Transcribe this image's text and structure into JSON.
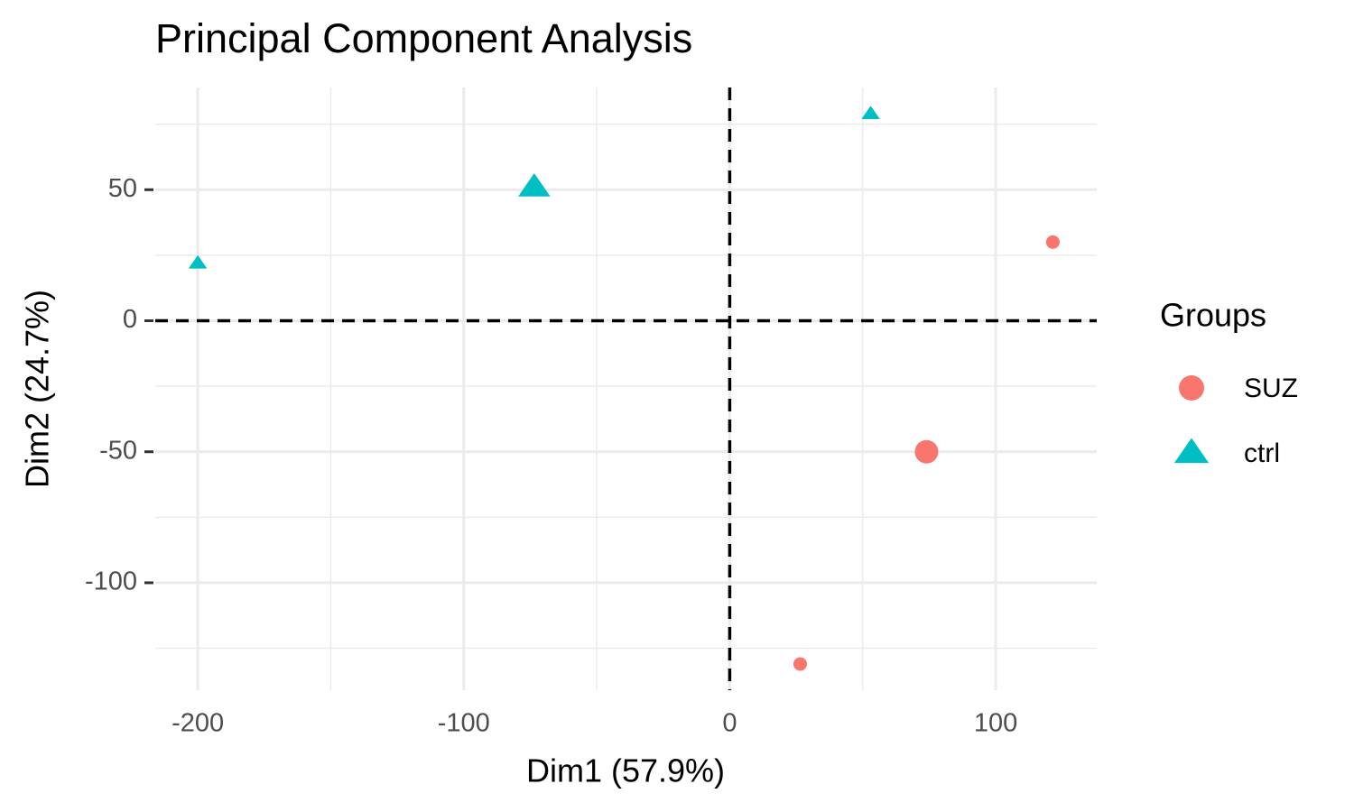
{
  "chart_data": {
    "type": "scatter",
    "title": "Principal Component Analysis",
    "x_label": "Dim1 (57.9%)",
    "y_label": "Dim2 (24.7%)",
    "legend_title": "Groups",
    "legend_position": "right",
    "grid": true,
    "reference_lines": {
      "x": 0,
      "y": 0
    },
    "xlim": [
      -216,
      138
    ],
    "ylim": [
      -141,
      89
    ],
    "xticks": [
      -200,
      -100,
      0,
      100
    ],
    "yticks": [
      -100,
      -50,
      0,
      50
    ],
    "series": [
      {
        "name": "SUZ",
        "color": "#F8766D",
        "marker": "circle",
        "x": [
          121.5,
          74,
          26.5
        ],
        "values": [
          30,
          -50,
          -131
        ],
        "sizes": [
          1,
          2,
          1
        ]
      },
      {
        "name": "ctrl",
        "color": "#00BFC4",
        "marker": "triangle",
        "x": [
          -200,
          -73.5,
          53
        ],
        "values": [
          22,
          51,
          79
        ],
        "sizes": [
          1,
          2,
          1
        ]
      }
    ]
  }
}
